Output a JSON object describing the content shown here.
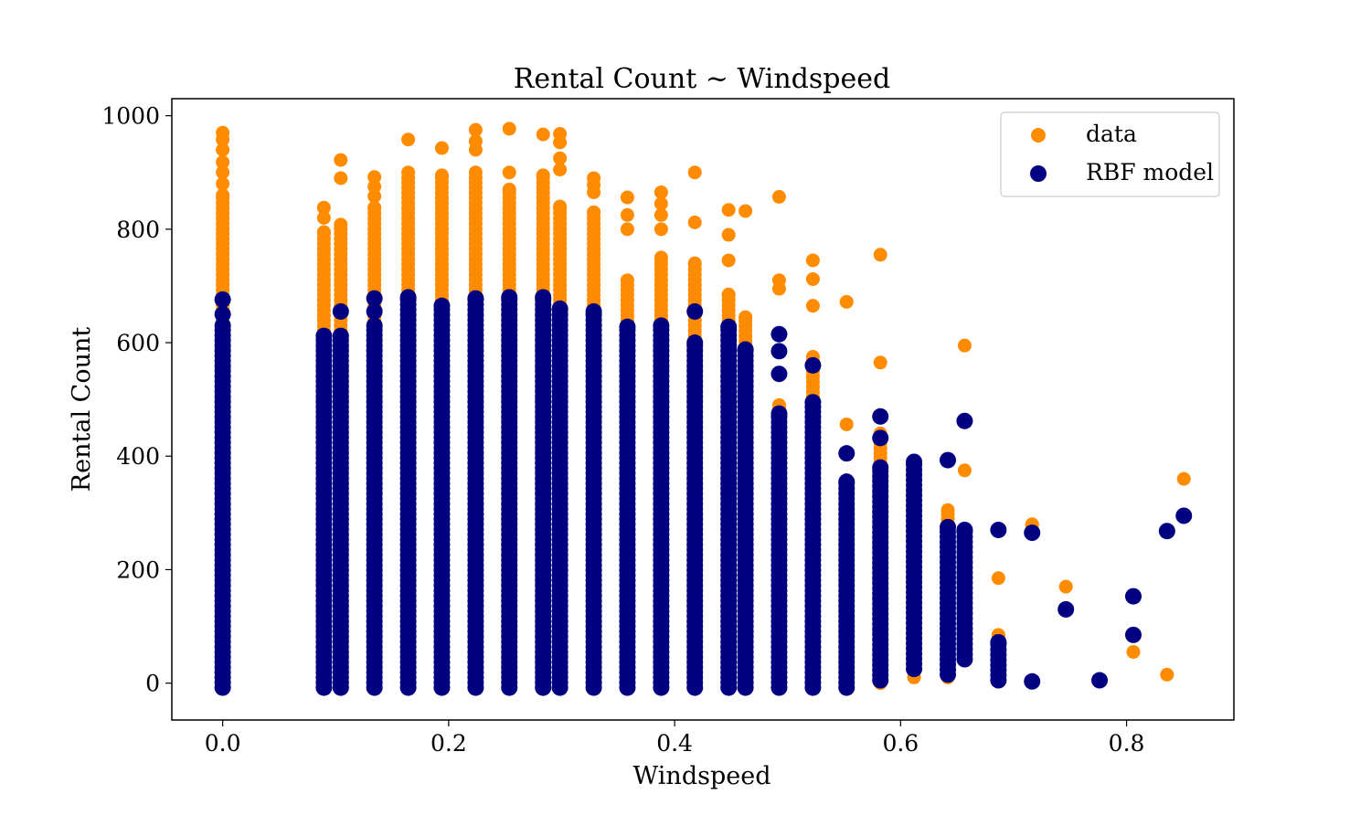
{
  "chart_data": {
    "type": "scatter",
    "title": "Rental Count ~ Windspeed",
    "xlabel": "Windspeed",
    "ylabel": "Rental Count",
    "xlim": [
      -0.045,
      0.895
    ],
    "ylim": [
      -65,
      1030
    ],
    "xticks": [
      0.0,
      0.2,
      0.4,
      0.6,
      0.8
    ],
    "xtick_labels": [
      "0.0",
      "0.2",
      "0.4",
      "0.6",
      "0.8"
    ],
    "yticks": [
      0,
      200,
      400,
      600,
      800,
      1000
    ],
    "ytick_labels": [
      "0",
      "200",
      "400",
      "600",
      "800",
      "1000"
    ],
    "grid": false,
    "legend_position": "top-right",
    "series": [
      {
        "name": "data",
        "color": "#ff8c00",
        "groups": [
          {
            "x": 0.0,
            "ymin": 0,
            "ymax": 860,
            "extra": [
              880,
              900,
              918,
              940,
              958,
              970
            ]
          },
          {
            "x": 0.0896,
            "ymin": 0,
            "ymax": 795,
            "extra": [
              820,
              838
            ]
          },
          {
            "x": 0.1045,
            "ymin": 0,
            "ymax": 808,
            "extra": [
              890,
              922
            ]
          },
          {
            "x": 0.1343,
            "ymin": 0,
            "ymax": 838,
            "extra": [
              858,
              875,
              892
            ]
          },
          {
            "x": 0.1642,
            "ymin": 0,
            "ymax": 900,
            "extra": [
              958
            ]
          },
          {
            "x": 0.194,
            "ymin": 0,
            "ymax": 895,
            "extra": [
              943
            ]
          },
          {
            "x": 0.2239,
            "ymin": 0,
            "ymax": 900,
            "extra": [
              940,
              955,
              975
            ]
          },
          {
            "x": 0.2537,
            "ymin": 0,
            "ymax": 870,
            "extra": [
              900,
              977
            ]
          },
          {
            "x": 0.2836,
            "ymin": 0,
            "ymax": 895,
            "extra": [
              967
            ]
          },
          {
            "x": 0.2985,
            "ymin": 0,
            "ymax": 840,
            "extra": [
              905,
              925,
              953,
              968
            ]
          },
          {
            "x": 0.3284,
            "ymin": 0,
            "ymax": 830,
            "extra": [
              865,
              878,
              890
            ]
          },
          {
            "x": 0.3582,
            "ymin": 0,
            "ymax": 710,
            "extra": [
              800,
              825,
              856
            ]
          },
          {
            "x": 0.3881,
            "ymin": 0,
            "ymax": 750,
            "extra": [
              800,
              825,
              845,
              865
            ]
          },
          {
            "x": 0.4179,
            "ymin": 0,
            "ymax": 740,
            "extra": [
              812,
              900
            ]
          },
          {
            "x": 0.4478,
            "ymin": 0,
            "ymax": 685,
            "extra": [
              745,
              790,
              834
            ]
          },
          {
            "x": 0.4627,
            "ymin": 0,
            "ymax": 645,
            "extra": [
              832
            ]
          },
          {
            "x": 0.4925,
            "ymin": 0,
            "ymax": 490,
            "extra": [
              695,
              710,
              857
            ]
          },
          {
            "x": 0.5224,
            "ymin": 0,
            "ymax": 575,
            "extra": [
              665,
              712,
              745
            ]
          },
          {
            "x": 0.5522,
            "ymin": 0,
            "ymax": 330,
            "extra": [
              456,
              672
            ]
          },
          {
            "x": 0.5821,
            "ymin": 0,
            "ymax": 440,
            "extra": [
              565,
              755
            ]
          },
          {
            "x": 0.6119,
            "ymin": 10,
            "ymax": 380,
            "extra": []
          },
          {
            "x": 0.6418,
            "ymin": 10,
            "ymax": 305,
            "extra": []
          },
          {
            "x": 0.6567,
            "ymin": 40,
            "ymax": 270,
            "extra": [
              375,
              595
            ]
          },
          {
            "x": 0.6866,
            "ymin": 75,
            "ymax": 85,
            "extra": [
              185
            ]
          },
          {
            "x": 0.7164,
            "ymin": 270,
            "ymax": 280,
            "extra": []
          },
          {
            "x": 0.7463,
            "ymin": 170,
            "ymax": 170,
            "extra": []
          },
          {
            "x": 0.806,
            "ymin": 55,
            "ymax": 55,
            "extra": []
          },
          {
            "x": 0.8358,
            "ymin": 15,
            "ymax": 15,
            "extra": []
          },
          {
            "x": 0.8507,
            "ymin": 360,
            "ymax": 360,
            "extra": []
          }
        ]
      },
      {
        "name": "RBF model",
        "color": "#000080",
        "groups": [
          {
            "x": 0.0,
            "ymin": -8,
            "ymax": 630,
            "extra": [
              650,
              676
            ]
          },
          {
            "x": 0.0896,
            "ymin": -8,
            "ymax": 612,
            "extra": []
          },
          {
            "x": 0.1045,
            "ymin": -8,
            "ymax": 612,
            "extra": [
              655
            ]
          },
          {
            "x": 0.1343,
            "ymin": -8,
            "ymax": 630,
            "extra": [
              655,
              678
            ]
          },
          {
            "x": 0.1642,
            "ymin": -8,
            "ymax": 680,
            "extra": []
          },
          {
            "x": 0.194,
            "ymin": -8,
            "ymax": 665,
            "extra": []
          },
          {
            "x": 0.2239,
            "ymin": -8,
            "ymax": 678,
            "extra": []
          },
          {
            "x": 0.2537,
            "ymin": -8,
            "ymax": 680,
            "extra": []
          },
          {
            "x": 0.2836,
            "ymin": -8,
            "ymax": 680,
            "extra": []
          },
          {
            "x": 0.2985,
            "ymin": -8,
            "ymax": 660,
            "extra": []
          },
          {
            "x": 0.3284,
            "ymin": -8,
            "ymax": 655,
            "extra": []
          },
          {
            "x": 0.3582,
            "ymin": -8,
            "ymax": 628,
            "extra": []
          },
          {
            "x": 0.3881,
            "ymin": -8,
            "ymax": 630,
            "extra": []
          },
          {
            "x": 0.4179,
            "ymin": -8,
            "ymax": 600,
            "extra": [
              655
            ]
          },
          {
            "x": 0.4478,
            "ymin": -8,
            "ymax": 628,
            "extra": []
          },
          {
            "x": 0.4627,
            "ymin": -8,
            "ymax": 588,
            "extra": []
          },
          {
            "x": 0.4925,
            "ymin": -8,
            "ymax": 475,
            "extra": [
              545,
              585,
              615
            ]
          },
          {
            "x": 0.5224,
            "ymin": -8,
            "ymax": 495,
            "extra": [
              560
            ]
          },
          {
            "x": 0.5522,
            "ymin": -8,
            "ymax": 355,
            "extra": [
              405
            ]
          },
          {
            "x": 0.5821,
            "ymin": 5,
            "ymax": 380,
            "extra": [
              432,
              470
            ]
          },
          {
            "x": 0.6119,
            "ymin": 25,
            "ymax": 390,
            "extra": []
          },
          {
            "x": 0.6418,
            "ymin": 15,
            "ymax": 275,
            "extra": [
              393
            ]
          },
          {
            "x": 0.6567,
            "ymin": 42,
            "ymax": 270,
            "extra": [
              462
            ]
          },
          {
            "x": 0.6866,
            "ymin": 5,
            "ymax": 72,
            "extra": [
              270
            ]
          },
          {
            "x": 0.7164,
            "ymin": 3,
            "ymax": 3,
            "extra": [
              265
            ]
          },
          {
            "x": 0.7463,
            "ymin": 130,
            "ymax": 130,
            "extra": []
          },
          {
            "x": 0.7761,
            "ymin": 5,
            "ymax": 5,
            "extra": []
          },
          {
            "x": 0.806,
            "ymin": 85,
            "ymax": 85,
            "extra": [
              153
            ]
          },
          {
            "x": 0.8358,
            "ymin": 268,
            "ymax": 268,
            "extra": []
          },
          {
            "x": 0.8507,
            "ymin": 295,
            "ymax": 295,
            "extra": []
          }
        ]
      }
    ]
  }
}
